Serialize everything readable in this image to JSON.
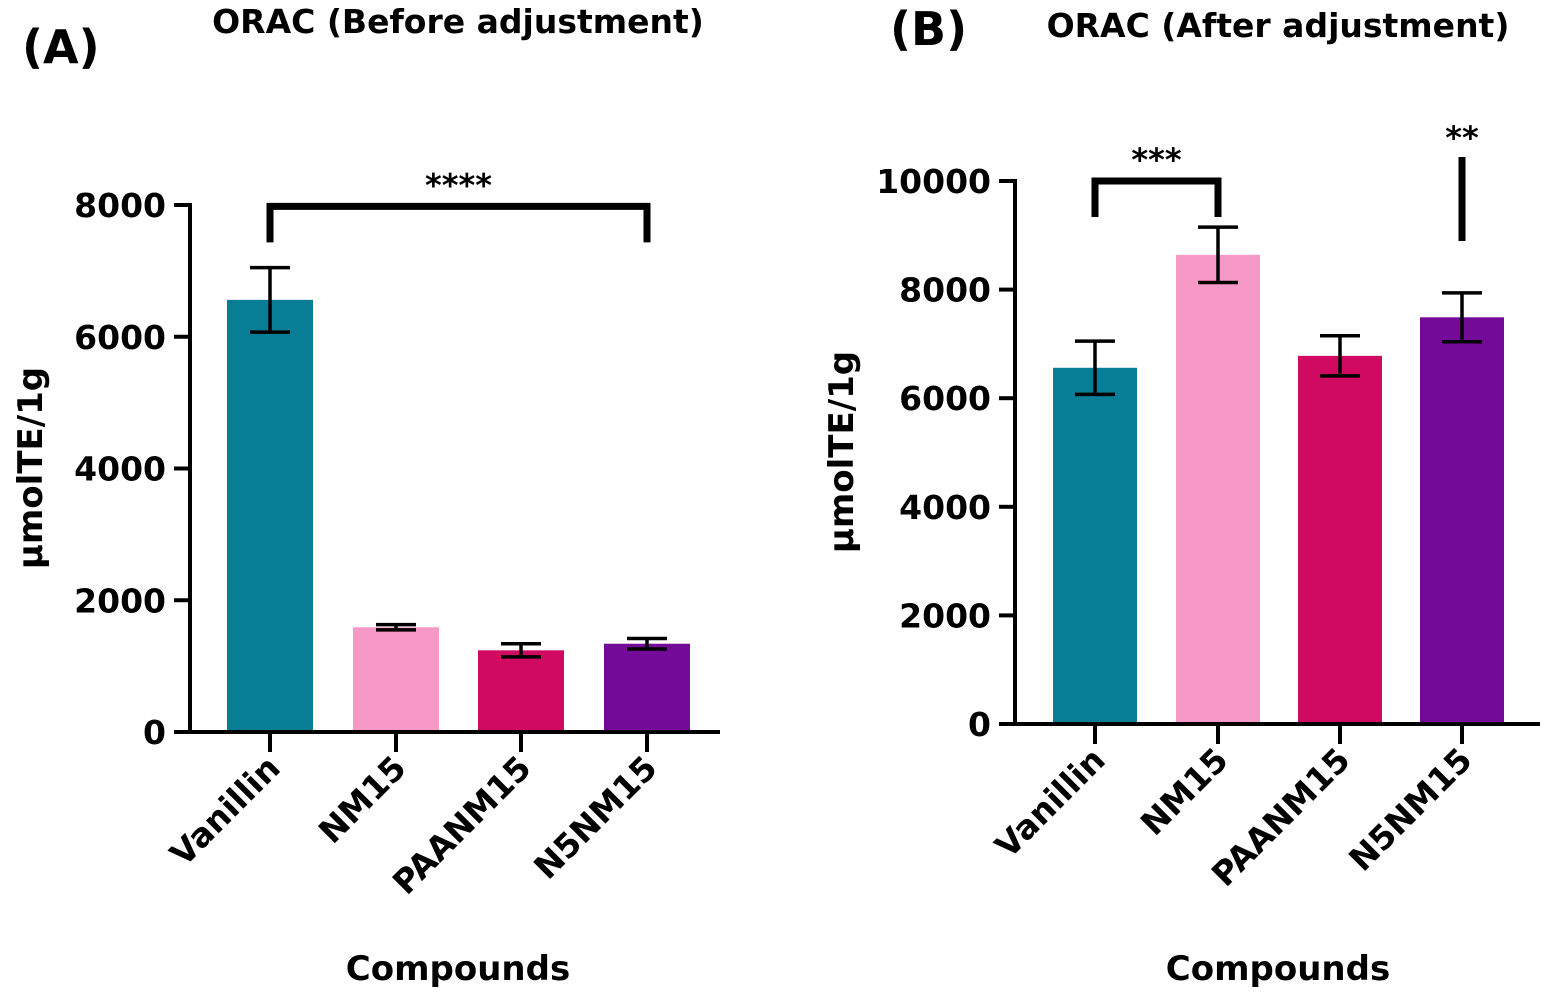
{
  "chart_data": [
    {
      "type": "bar",
      "panel_label": "(A)",
      "title": "ORAC (Before adjustment)",
      "xlabel": "Compounds",
      "ylabel": "µmolTE/1g",
      "ylim": [
        0,
        8000
      ],
      "yticks": [
        "0",
        "2000",
        "4000",
        "6000",
        "8000"
      ],
      "grid": false,
      "categories": [
        "Vanillin",
        "NM15",
        "PAANM15",
        "N5NM15"
      ],
      "values": [
        6560,
        1590,
        1240,
        1340
      ],
      "errors": [
        490,
        40,
        100,
        80
      ],
      "colors": [
        "#087d96",
        "#f799c6",
        "#cf0a60",
        "#740a98"
      ],
      "significance": [
        {
          "label": "****",
          "type": "bracket",
          "from": "Vanillin",
          "to": "N5NM15",
          "y": 7980
        }
      ]
    },
    {
      "type": "bar",
      "panel_label": "(B)",
      "title": "ORAC (After adjustment)",
      "xlabel": "Compounds",
      "ylabel": "µmolTE/1g",
      "ylim": [
        0,
        10000
      ],
      "yticks": [
        "0",
        "2000",
        "4000",
        "6000",
        "8000",
        "10000"
      ],
      "grid": false,
      "categories": [
        "Vanillin",
        "NM15",
        "PAANM15",
        "N5NM15"
      ],
      "values": [
        6560,
        8640,
        6780,
        7490
      ],
      "errors": [
        490,
        510,
        370,
        450
      ],
      "colors": [
        "#087d96",
        "#f799c6",
        "#cf0a60",
        "#740a98"
      ],
      "significance": [
        {
          "label": "***",
          "type": "bracket",
          "from": "Vanillin",
          "to": "NM15",
          "y": 10000
        },
        {
          "label": "**",
          "type": "line",
          "from": "N5NM15",
          "to": "N5NM15",
          "y": 10000
        }
      ]
    }
  ]
}
